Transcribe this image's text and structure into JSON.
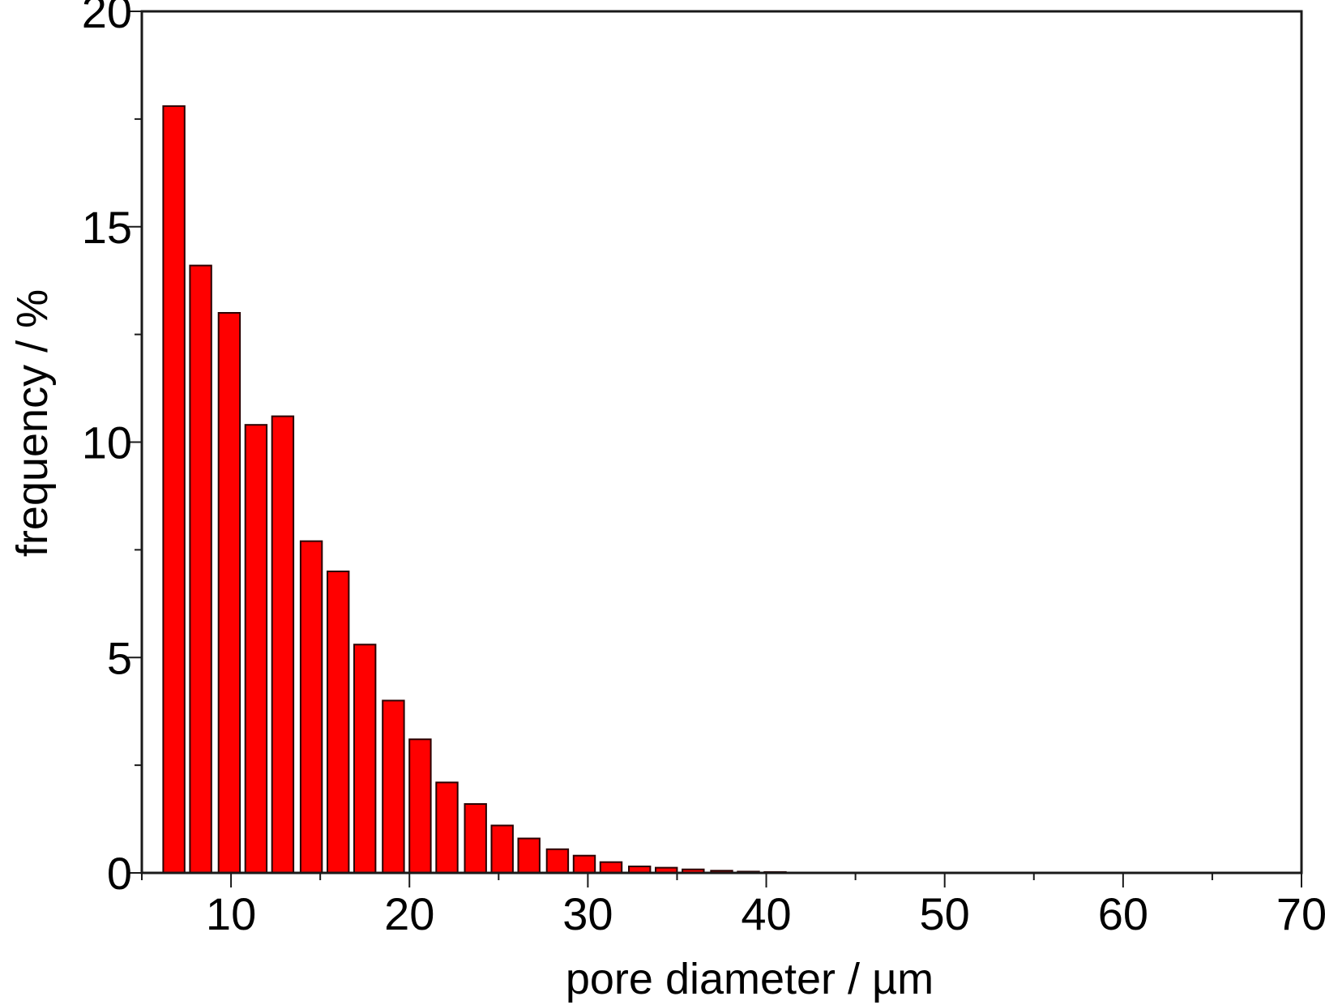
{
  "chart_data": {
    "type": "bar",
    "xlabel": "pore diameter / µm",
    "ylabel": "frequency / %",
    "xlim": [
      5,
      70
    ],
    "ylim": [
      0,
      20
    ],
    "x_ticks": [
      10,
      20,
      30,
      40,
      50,
      60,
      70
    ],
    "y_ticks": [
      0,
      5,
      10,
      15,
      20
    ],
    "grid": false,
    "bar_width": 1.2,
    "bar_color": "#ff0000",
    "series": [
      {
        "x": [
          6.8,
          8.3,
          9.9,
          11.4,
          12.9,
          14.5,
          16.0,
          17.5,
          19.1,
          20.6,
          22.1,
          23.7,
          25.2,
          26.7,
          28.3,
          29.8,
          31.3,
          32.9,
          34.4,
          35.9,
          37.5,
          39.0,
          40.5
        ],
        "values": [
          17.8,
          14.1,
          13.0,
          10.4,
          10.6,
          7.7,
          7.0,
          5.3,
          4.0,
          3.1,
          2.1,
          1.6,
          1.1,
          0.8,
          0.55,
          0.4,
          0.25,
          0.15,
          0.12,
          0.08,
          0.05,
          0.03,
          0.02
        ]
      }
    ]
  }
}
